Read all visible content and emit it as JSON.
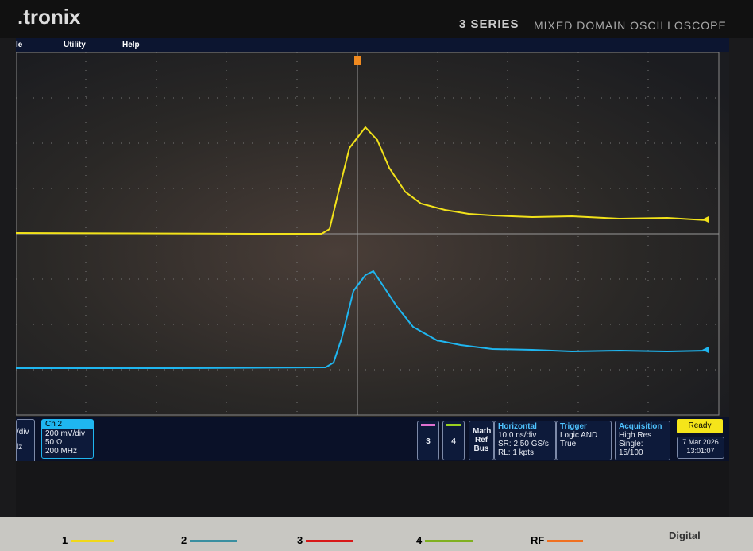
{
  "header": {
    "brand": ".tronix",
    "series": "3 SERIES",
    "product": "MIXED DOMAIN OSCILLOSCOPE"
  },
  "menu": [
    "le",
    "Utility",
    "Help"
  ],
  "ch1_partial": {
    "scale": "/div",
    "bandwidth": "lz"
  },
  "ch2": {
    "label": "Ch 2",
    "scale": "200 mV/div",
    "impedance": "50 Ω",
    "bandwidth": "200 MHz"
  },
  "channel_buttons": [
    "3",
    "4"
  ],
  "math_ref_bus": [
    "Math",
    "Ref",
    "Bus"
  ],
  "horizontal": {
    "title": "Horizontal",
    "scale": "10.0 ns/div",
    "sample_rate": "SR: 2.50 GS/s",
    "record_length": "RL: 1 kpts"
  },
  "trigger": {
    "title": "Trigger",
    "type": "Logic AND",
    "state": "True"
  },
  "acquisition": {
    "title": "Acquisition",
    "mode": "High Res",
    "run": "Single:",
    "count": "15/100"
  },
  "status": {
    "state": "Ready",
    "date": "7 Mar 2026",
    "time": "13:01:07"
  },
  "front_buttons": [
    "1",
    "2",
    "3",
    "4",
    "RF",
    "Digital"
  ]
}
